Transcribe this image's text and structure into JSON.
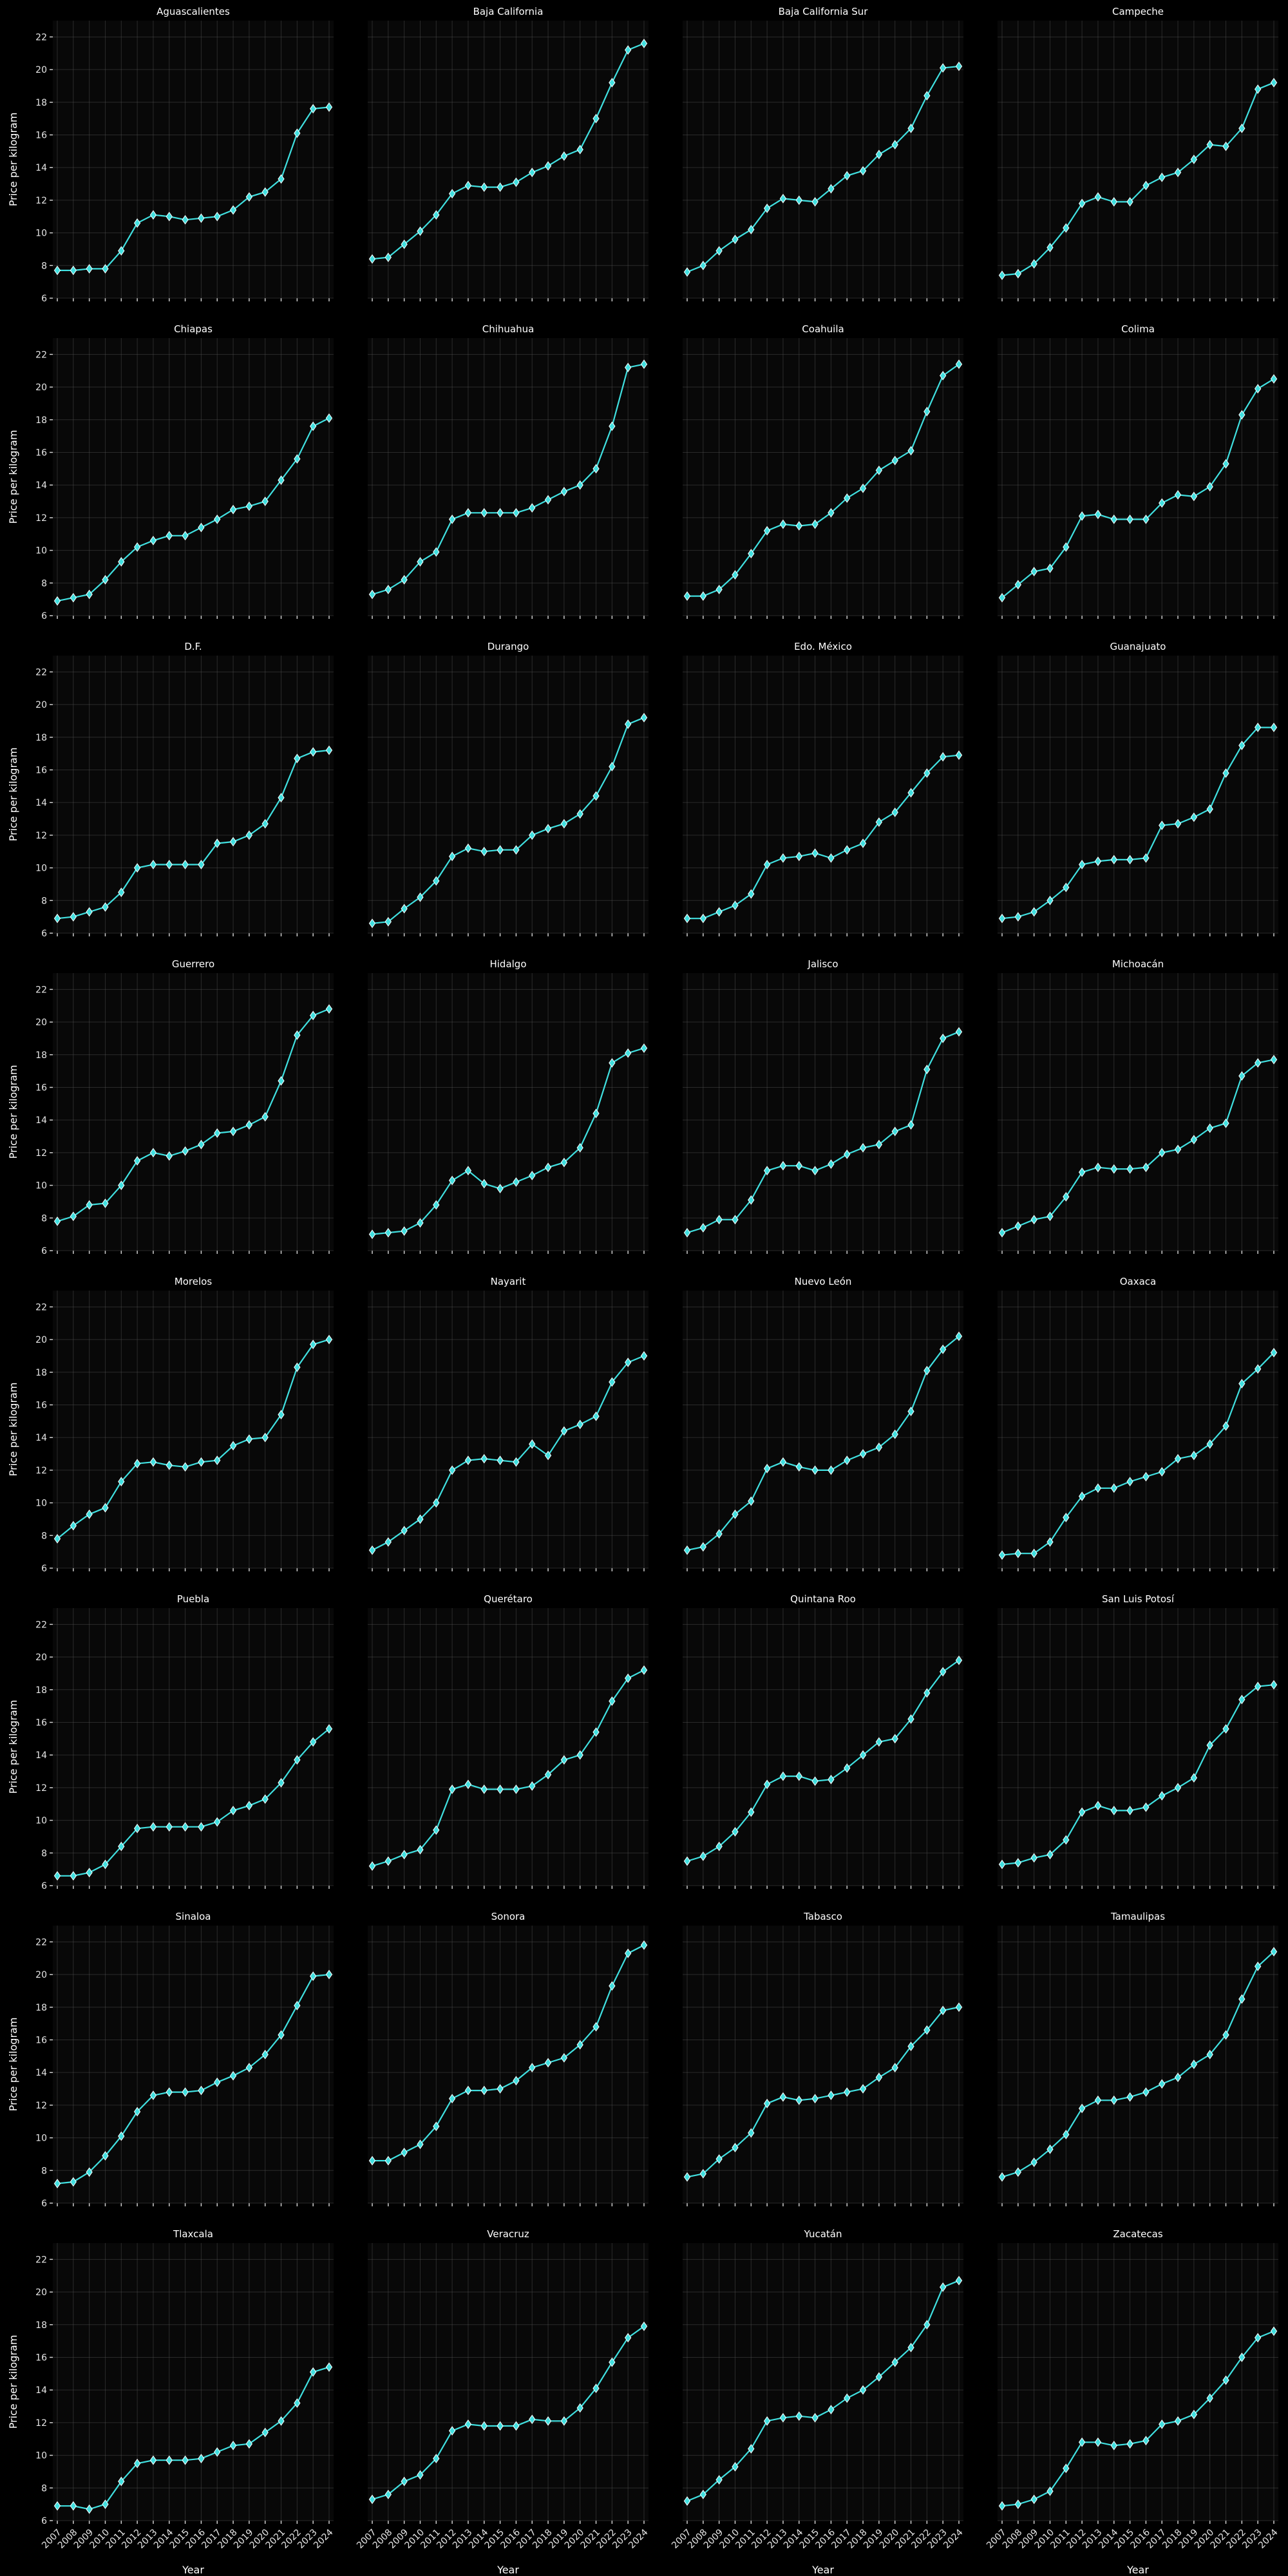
{
  "colors": {
    "background": "#000000",
    "panel": "#080808",
    "line": "#40e0e0",
    "marker_edge": "#ffffff",
    "text": "#ffffff"
  },
  "chart_data": {
    "type": "line",
    "layout": "small-multiples 4x8",
    "xlabel": "Year",
    "ylabel": "Price per kilogram",
    "ylim": [
      6,
      23
    ],
    "yticks": [
      6,
      8,
      10,
      12,
      14,
      16,
      18,
      20,
      22
    ],
    "grid": true,
    "marker": "diamond",
    "years": [
      2007,
      2008,
      2009,
      2010,
      2011,
      2012,
      2013,
      2014,
      2015,
      2016,
      2017,
      2018,
      2019,
      2020,
      2021,
      2022,
      2023,
      2024
    ],
    "panels": [
      {
        "title": "Aguascalientes",
        "values": [
          7.7,
          7.7,
          7.8,
          7.8,
          8.9,
          10.6,
          11.1,
          11.0,
          10.8,
          10.9,
          11.0,
          11.4,
          12.2,
          12.5,
          13.3,
          16.1,
          17.6,
          17.7
        ]
      },
      {
        "title": "Baja California",
        "values": [
          8.4,
          8.5,
          9.3,
          10.1,
          11.1,
          12.4,
          12.9,
          12.8,
          12.8,
          13.1,
          13.7,
          14.1,
          14.7,
          15.1,
          17.0,
          19.2,
          21.2,
          21.6
        ]
      },
      {
        "title": "Baja California Sur",
        "values": [
          7.6,
          8.0,
          8.9,
          9.6,
          10.2,
          11.5,
          12.1,
          12.0,
          11.9,
          12.7,
          13.5,
          13.8,
          14.8,
          15.4,
          16.4,
          18.4,
          20.1,
          20.2
        ]
      },
      {
        "title": "Campeche",
        "values": [
          7.4,
          7.5,
          8.1,
          9.1,
          10.3,
          11.8,
          12.2,
          11.9,
          11.9,
          12.9,
          13.4,
          13.7,
          14.5,
          15.4,
          15.3,
          16.4,
          18.8,
          19.2
        ]
      },
      {
        "title": "Chiapas",
        "values": [
          6.9,
          7.1,
          7.3,
          8.2,
          9.3,
          10.2,
          10.6,
          10.9,
          10.9,
          11.4,
          11.9,
          12.5,
          12.7,
          13.0,
          14.3,
          15.6,
          17.6,
          18.1
        ]
      },
      {
        "title": "Chihuahua",
        "values": [
          7.3,
          7.6,
          8.2,
          9.3,
          9.9,
          11.9,
          12.3,
          12.3,
          12.3,
          12.3,
          12.6,
          13.1,
          13.6,
          14.0,
          15.0,
          17.6,
          21.2,
          21.4
        ]
      },
      {
        "title": "Coahuila",
        "values": [
          7.2,
          7.2,
          7.6,
          8.5,
          9.8,
          11.2,
          11.6,
          11.5,
          11.6,
          12.3,
          13.2,
          13.8,
          14.9,
          15.5,
          16.1,
          18.5,
          20.7,
          21.4
        ]
      },
      {
        "title": "Colima",
        "values": [
          7.1,
          7.9,
          8.7,
          8.9,
          10.2,
          12.1,
          12.2,
          11.9,
          11.9,
          11.9,
          12.9,
          13.4,
          13.3,
          13.9,
          15.3,
          18.3,
          19.9,
          20.5
        ]
      },
      {
        "title": "D.F.",
        "values": [
          6.9,
          7.0,
          7.3,
          7.6,
          8.5,
          10.0,
          10.2,
          10.2,
          10.2,
          10.2,
          11.5,
          11.6,
          12.0,
          12.7,
          14.3,
          16.7,
          17.1,
          17.2
        ]
      },
      {
        "title": "Durango",
        "values": [
          6.6,
          6.7,
          7.5,
          8.2,
          9.2,
          10.7,
          11.2,
          11.0,
          11.1,
          11.1,
          12.0,
          12.4,
          12.7,
          13.3,
          14.4,
          16.2,
          18.8,
          19.2
        ]
      },
      {
        "title": "Edo. México",
        "values": [
          6.9,
          6.9,
          7.3,
          7.7,
          8.4,
          10.2,
          10.6,
          10.7,
          10.9,
          10.6,
          11.1,
          11.5,
          12.8,
          13.4,
          14.6,
          15.8,
          16.8,
          16.9
        ]
      },
      {
        "title": "Guanajuato",
        "values": [
          6.9,
          7.0,
          7.3,
          8.0,
          8.8,
          10.2,
          10.4,
          10.5,
          10.5,
          10.6,
          12.6,
          12.7,
          13.1,
          13.6,
          15.8,
          17.5,
          18.6,
          18.6
        ]
      },
      {
        "title": "Guerrero",
        "values": [
          7.8,
          8.1,
          8.8,
          8.9,
          10.0,
          11.5,
          12.0,
          11.8,
          12.1,
          12.5,
          13.2,
          13.3,
          13.7,
          14.2,
          16.4,
          19.2,
          20.4,
          20.8
        ]
      },
      {
        "title": "Hidalgo",
        "values": [
          7.0,
          7.1,
          7.2,
          7.7,
          8.8,
          10.3,
          10.9,
          10.1,
          9.8,
          10.2,
          10.6,
          11.1,
          11.4,
          12.3,
          14.4,
          17.5,
          18.1,
          18.4
        ]
      },
      {
        "title": "Jalisco",
        "values": [
          7.1,
          7.4,
          7.9,
          7.9,
          9.1,
          10.9,
          11.2,
          11.2,
          10.9,
          11.3,
          11.9,
          12.3,
          12.5,
          13.3,
          13.7,
          17.1,
          19.0,
          19.4
        ]
      },
      {
        "title": "Michoacán",
        "values": [
          7.1,
          7.5,
          7.9,
          8.1,
          9.3,
          10.8,
          11.1,
          11.0,
          11.0,
          11.1,
          12.0,
          12.2,
          12.8,
          13.5,
          13.8,
          16.7,
          17.5,
          17.7
        ]
      },
      {
        "title": "Morelos",
        "values": [
          7.8,
          8.6,
          9.3,
          9.7,
          11.3,
          12.4,
          12.5,
          12.3,
          12.2,
          12.5,
          12.6,
          13.5,
          13.9,
          14.0,
          15.4,
          18.3,
          19.7,
          20.0
        ]
      },
      {
        "title": "Nayarit",
        "values": [
          7.1,
          7.6,
          8.3,
          9.0,
          10.0,
          12.0,
          12.6,
          12.7,
          12.6,
          12.5,
          13.6,
          12.9,
          14.4,
          14.8,
          15.3,
          17.4,
          18.6,
          19.0
        ]
      },
      {
        "title": "Nuevo León",
        "values": [
          7.1,
          7.3,
          8.1,
          9.3,
          10.1,
          12.1,
          12.5,
          12.2,
          12.0,
          12.0,
          12.6,
          13.0,
          13.4,
          14.2,
          15.6,
          18.1,
          19.4,
          20.2
        ]
      },
      {
        "title": "Oaxaca",
        "values": [
          6.8,
          6.9,
          6.9,
          7.6,
          9.1,
          10.4,
          10.9,
          10.9,
          11.3,
          11.6,
          11.9,
          12.7,
          12.9,
          13.6,
          14.7,
          17.3,
          18.2,
          19.2
        ]
      },
      {
        "title": "Puebla",
        "values": [
          6.6,
          6.6,
          6.8,
          7.3,
          8.4,
          9.5,
          9.6,
          9.6,
          9.6,
          9.6,
          9.9,
          10.6,
          10.9,
          11.3,
          12.3,
          13.7,
          14.8,
          15.6
        ]
      },
      {
        "title": "Querétaro",
        "values": [
          7.2,
          7.5,
          7.9,
          8.2,
          9.4,
          11.9,
          12.2,
          11.9,
          11.9,
          11.9,
          12.1,
          12.8,
          13.7,
          14.0,
          15.4,
          17.3,
          18.7,
          19.2
        ]
      },
      {
        "title": "Quintana Roo",
        "values": [
          7.5,
          7.8,
          8.4,
          9.3,
          10.5,
          12.2,
          12.7,
          12.7,
          12.4,
          12.5,
          13.2,
          14.0,
          14.8,
          15.0,
          16.2,
          17.8,
          19.1,
          19.8
        ]
      },
      {
        "title": "San Luis Potosí",
        "values": [
          7.3,
          7.4,
          7.7,
          7.9,
          8.8,
          10.5,
          10.9,
          10.6,
          10.6,
          10.8,
          11.5,
          12.0,
          12.6,
          14.6,
          15.6,
          17.4,
          18.2,
          18.3
        ]
      },
      {
        "title": "Sinaloa",
        "values": [
          7.2,
          7.3,
          7.9,
          8.9,
          10.1,
          11.6,
          12.6,
          12.8,
          12.8,
          12.9,
          13.4,
          13.8,
          14.3,
          15.1,
          16.3,
          18.1,
          19.9,
          20.0
        ]
      },
      {
        "title": "Sonora",
        "values": [
          8.6,
          8.6,
          9.1,
          9.6,
          10.7,
          12.4,
          12.9,
          12.9,
          13.0,
          13.5,
          14.3,
          14.6,
          14.9,
          15.7,
          16.8,
          19.3,
          21.3,
          21.8
        ]
      },
      {
        "title": "Tabasco",
        "values": [
          7.6,
          7.8,
          8.7,
          9.4,
          10.3,
          12.1,
          12.5,
          12.3,
          12.4,
          12.6,
          12.8,
          13.0,
          13.7,
          14.3,
          15.6,
          16.6,
          17.8,
          18.0
        ]
      },
      {
        "title": "Tamaulipas",
        "values": [
          7.6,
          7.9,
          8.5,
          9.3,
          10.2,
          11.8,
          12.3,
          12.3,
          12.5,
          12.8,
          13.3,
          13.7,
          14.5,
          15.1,
          16.3,
          18.5,
          20.5,
          21.4
        ]
      },
      {
        "title": "Tlaxcala",
        "values": [
          6.9,
          6.9,
          6.7,
          7.0,
          8.4,
          9.5,
          9.7,
          9.7,
          9.7,
          9.8,
          10.2,
          10.6,
          10.7,
          11.4,
          12.1,
          13.2,
          15.1,
          15.4
        ]
      },
      {
        "title": "Veracruz",
        "values": [
          7.3,
          7.6,
          8.4,
          8.8,
          9.8,
          11.5,
          11.9,
          11.8,
          11.8,
          11.8,
          12.2,
          12.1,
          12.1,
          12.9,
          14.1,
          15.7,
          17.2,
          17.9
        ]
      },
      {
        "title": "Yucatán",
        "values": [
          7.2,
          7.6,
          8.5,
          9.3,
          10.4,
          12.1,
          12.3,
          12.4,
          12.3,
          12.8,
          13.5,
          14.0,
          14.8,
          15.7,
          16.6,
          18.0,
          20.3,
          20.7
        ]
      },
      {
        "title": "Zacatecas",
        "values": [
          6.9,
          7.0,
          7.3,
          7.8,
          9.2,
          10.8,
          10.8,
          10.6,
          10.7,
          10.9,
          11.9,
          12.1,
          12.5,
          13.5,
          14.6,
          16.0,
          17.2,
          17.6
        ]
      }
    ]
  }
}
